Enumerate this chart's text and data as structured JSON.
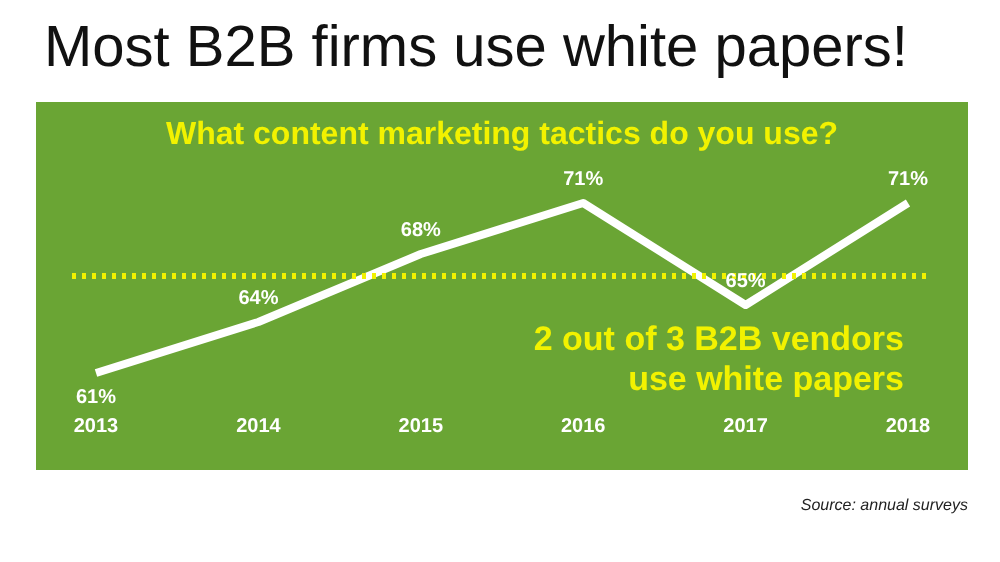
{
  "chart_data": {
    "type": "line",
    "title": "Most B2B firms use white papers!",
    "subtitle": "What content marketing tactics do you use?",
    "categories": [
      "2013",
      "2014",
      "2015",
      "2016",
      "2017",
      "2018"
    ],
    "series": [
      {
        "color": "#ffffff",
        "values": [
          61,
          64,
          68,
          71,
          65,
          71
        ],
        "value_labels": [
          "61%",
          "64%",
          "68%",
          "71%",
          "65%",
          "71%"
        ]
      }
    ],
    "tick_labels": "x",
    "grid": false,
    "legend": false,
    "marker": "none",
    "ref_lines": [
      {
        "axis": "y",
        "value": 66.7,
        "label": "2 out of 3 B2B vendors use white papers",
        "color": "#f2f200",
        "line_style": "dotted"
      }
    ],
    "annotations": [
      "Source: annual surveys"
    ]
  }
}
